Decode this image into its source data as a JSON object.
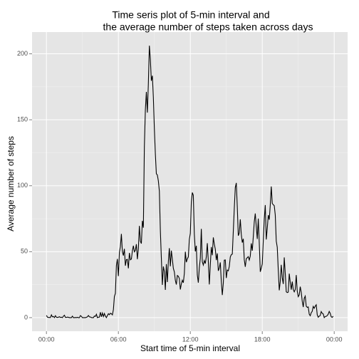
{
  "chart_data": {
    "type": "line",
    "title": [
      "Time seris plot of 5-min interval and",
      "the average number of steps taken across days"
    ],
    "xlabel": "Start time of 5-min interval",
    "ylabel": "Average number of steps",
    "color": "#000000",
    "grid": true,
    "xlim": [
      -72,
      1507
    ],
    "ylim": [
      -10.3,
      216.5
    ],
    "xticks": [
      {
        "value": 0,
        "label": "00:00"
      },
      {
        "value": 360,
        "label": "06:00"
      },
      {
        "value": 720,
        "label": "12:00"
      },
      {
        "value": 1080,
        "label": "18:00"
      },
      {
        "value": 1440,
        "label": "00:00"
      }
    ],
    "yticks": [
      0,
      50,
      100,
      150,
      200
    ],
    "x": [
      0,
      5,
      10,
      15,
      20,
      25,
      30,
      35,
      40,
      45,
      50,
      55,
      60,
      65,
      70,
      75,
      80,
      85,
      90,
      95,
      100,
      105,
      110,
      115,
      120,
      125,
      130,
      135,
      140,
      145,
      150,
      155,
      160,
      165,
      170,
      175,
      180,
      185,
      190,
      195,
      200,
      205,
      210,
      215,
      220,
      225,
      230,
      235,
      240,
      245,
      250,
      255,
      260,
      265,
      270,
      275,
      280,
      285,
      290,
      295,
      300,
      305,
      310,
      315,
      320,
      325,
      330,
      335,
      340,
      345,
      350,
      355,
      360,
      365,
      370,
      375,
      380,
      385,
      390,
      395,
      400,
      405,
      410,
      415,
      420,
      425,
      430,
      435,
      440,
      445,
      450,
      455,
      460,
      465,
      470,
      475,
      480,
      485,
      490,
      495,
      500,
      505,
      510,
      515,
      520,
      525,
      530,
      535,
      540,
      545,
      550,
      555,
      560,
      565,
      570,
      575,
      580,
      585,
      590,
      595,
      600,
      605,
      610,
      615,
      620,
      625,
      630,
      635,
      640,
      645,
      650,
      655,
      660,
      665,
      670,
      675,
      680,
      685,
      690,
      695,
      700,
      705,
      710,
      715,
      720,
      725,
      730,
      735,
      740,
      745,
      750,
      755,
      760,
      765,
      770,
      775,
      780,
      785,
      790,
      795,
      800,
      805,
      810,
      815,
      820,
      825,
      830,
      835,
      840,
      845,
      850,
      855,
      860,
      865,
      870,
      875,
      880,
      885,
      890,
      895,
      900,
      905,
      910,
      915,
      920,
      925,
      930,
      935,
      940,
      945,
      950,
      955,
      960,
      965,
      970,
      975,
      980,
      985,
      990,
      995,
      1000,
      1005,
      1010,
      1015,
      1020,
      1025,
      1030,
      1035,
      1040,
      1045,
      1050,
      1055,
      1060,
      1065,
      1070,
      1075,
      1080,
      1085,
      1090,
      1095,
      1100,
      1105,
      1110,
      1115,
      1120,
      1125,
      1130,
      1135,
      1140,
      1145,
      1150,
      1155,
      1160,
      1165,
      1170,
      1175,
      1180,
      1185,
      1190,
      1195,
      1200,
      1205,
      1210,
      1215,
      1220,
      1225,
      1230,
      1235,
      1240,
      1245,
      1250,
      1255,
      1260,
      1265,
      1270,
      1275,
      1280,
      1285,
      1290,
      1295,
      1300,
      1305,
      1310,
      1315,
      1320,
      1325,
      1330,
      1335,
      1340,
      1345,
      1350,
      1355,
      1360,
      1365,
      1370,
      1375,
      1380,
      1385,
      1390,
      1395,
      1400,
      1405,
      1410,
      1415,
      1420,
      1425,
      1430,
      1435
    ],
    "values": [
      1.72,
      0.34,
      0.13,
      0.15,
      0.08,
      2.09,
      0.53,
      0.87,
      0,
      1.47,
      0.3,
      0.13,
      0.32,
      0.68,
      0.15,
      0.34,
      0,
      1.11,
      1.83,
      0.17,
      0.17,
      0.38,
      0.26,
      0,
      0,
      0,
      1.13,
      0,
      0,
      0.13,
      0,
      0.23,
      0,
      0,
      1.55,
      0.94,
      0,
      0,
      0,
      0,
      0.21,
      0.62,
      1.62,
      0.58,
      0.49,
      0.08,
      0,
      0,
      1.19,
      0.94,
      2.57,
      0,
      0.34,
      0.36,
      4.11,
      0.66,
      3.49,
      0.83,
      3.11,
      1.11,
      0,
      1.57,
      3,
      2.25,
      3.32,
      2.96,
      2.09,
      6.06,
      16.02,
      18.34,
      39.45,
      44.49,
      31.49,
      49.26,
      53.77,
      63.45,
      49.96,
      47.08,
      52.15,
      39.34,
      44.02,
      44.17,
      37.36,
      49.04,
      43.81,
      44.38,
      50.51,
      54.51,
      49.92,
      50.98,
      55.68,
      44.32,
      52.26,
      69.55,
      57.85,
      56.15,
      73.38,
      68.21,
      129.43,
      157.53,
      171.15,
      155.4,
      177.3,
      206.17,
      195.92,
      179.57,
      183.4,
      167.02,
      143.45,
      124.04,
      109.11,
      108.11,
      103.72,
      95.97,
      66.21,
      45.23,
      24.79,
      38.75,
      34.98,
      21.06,
      40.57,
      26.98,
      42.42,
      52.66,
      38.92,
      50.79,
      44.28,
      37.42,
      34.7,
      28.34,
      25.09,
      31.94,
      31.36,
      29.68,
      21.32,
      25.55,
      28.38,
      26.47,
      33.43,
      49.98,
      42.04,
      44.6,
      46.04,
      59.19,
      63.87,
      87.7,
      94.85,
      92.77,
      63.4,
      50.17,
      54.47,
      32.42,
      26.53,
      37.74,
      45.06,
      67.28,
      42.34,
      39.88,
      43.26,
      40.98,
      46.25,
      56.43,
      42.75,
      25.13,
      39.96,
      53.55,
      47.32,
      60.81,
      55.75,
      51.96,
      43.58,
      48.7,
      35.47,
      37.55,
      41.85,
      27.51,
      17.11,
      26.08,
      43.62,
      43.77,
      30.02,
      36.08,
      35.49,
      38.85,
      45.96,
      47.75,
      48.13,
      65.32,
      82.91,
      98.66,
      102.11,
      83.96,
      62.13,
      64.13,
      74.55,
      63.17,
      56.91,
      59.77,
      43.87,
      38.57,
      44.66,
      45.45,
      46.21,
      43.68,
      46.62,
      56.3,
      50.72,
      61.23,
      72.72,
      78.94,
      68.94,
      59.66,
      75.09,
      56.51,
      34.77,
      37.45,
      40.68,
      58.02,
      74.7,
      85.32,
      59.26,
      67.77,
      77.7,
      74.25,
      85.34,
      99.45,
      86.58,
      85.6,
      84.87,
      77.83,
      58.04,
      53.36,
      36.32,
      20.72,
      27.4,
      40.02,
      30.21,
      25.55,
      45.66,
      33.53,
      19.62,
      19.02,
      19.34,
      33.34,
      26.81,
      21.17,
      27.3,
      21.34,
      19.55,
      21.32,
      32.3,
      20.15,
      15.94,
      17.23,
      23.45,
      19.25,
      12.45,
      8.02,
      14.66,
      16.3,
      8.68,
      7.79,
      8.13,
      2.62,
      1.45,
      3.68,
      4.81,
      8.51,
      7.08,
      8.7,
      9.75,
      2.21,
      0.32,
      1.11,
      1.6,
      4.6,
      3.3,
      2.85,
      0,
      0.83,
      0.96,
      1.58,
      2.6,
      4.7,
      3.3,
      0.64,
      0.23,
      1.08
    ]
  }
}
